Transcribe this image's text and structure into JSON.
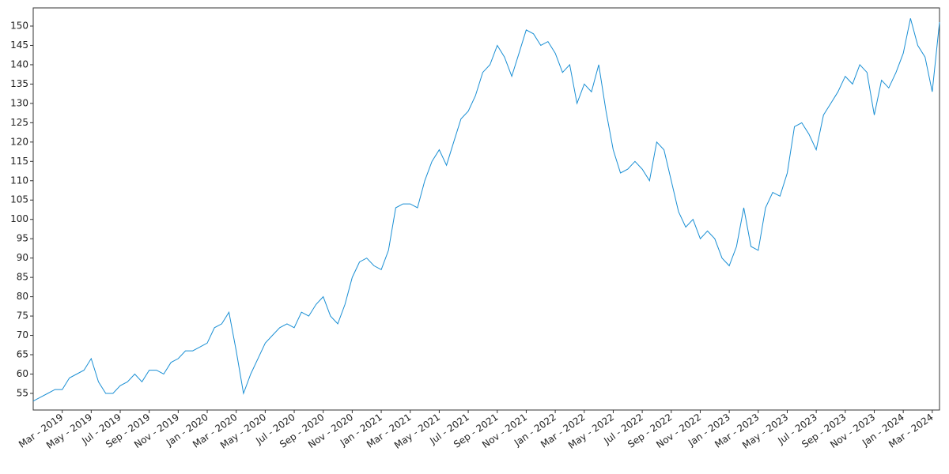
{
  "chart_data": {
    "type": "line",
    "categories": [
      null,
      null,
      null,
      null,
      "Mar - 2019",
      null,
      null,
      null,
      "May - 2019",
      null,
      null,
      null,
      "Jul - 2019",
      null,
      null,
      null,
      "Sep - 2019",
      null,
      null,
      null,
      "Nov - 2019",
      null,
      null,
      null,
      "Jan - 2020",
      null,
      null,
      null,
      "Mar - 2020",
      null,
      null,
      null,
      "May - 2020",
      null,
      null,
      null,
      "Jul - 2020",
      null,
      null,
      null,
      "Sep - 2020",
      null,
      null,
      null,
      "Nov - 2020",
      null,
      null,
      null,
      "Jan - 2021",
      null,
      null,
      null,
      "Mar - 2021",
      null,
      null,
      null,
      "May - 2021",
      null,
      null,
      null,
      "Jul - 2021",
      null,
      null,
      null,
      "Sep - 2021",
      null,
      null,
      null,
      "Nov - 2021",
      null,
      null,
      null,
      "Jan - 2022",
      null,
      null,
      null,
      "Mar - 2022",
      null,
      null,
      null,
      "May - 2022",
      null,
      null,
      null,
      "Jul - 2022",
      null,
      null,
      null,
      "Sep - 2022",
      null,
      null,
      null,
      "Nov - 2022",
      null,
      null,
      null,
      "Jan - 2023",
      null,
      null,
      null,
      "Mar - 2023",
      null,
      null,
      null,
      "May - 2023",
      null,
      null,
      null,
      "Jul - 2023",
      null,
      null,
      null,
      "Sep - 2023",
      null,
      null,
      null,
      "Nov - 2023",
      null,
      null,
      null,
      "Jan - 2024",
      null,
      null,
      null,
      "Mar - 2024",
      null
    ],
    "series": [
      {
        "color": "#1a8fd4",
        "values": [
          53,
          54,
          55,
          56,
          56,
          59,
          60,
          61,
          64,
          58,
          55,
          55,
          57,
          58,
          60,
          58,
          61,
          61,
          60,
          63,
          64,
          66,
          66,
          67,
          68,
          72,
          73,
          76,
          66,
          55,
          60,
          64,
          68,
          70,
          72,
          73,
          72,
          76,
          75,
          78,
          80,
          75,
          73,
          78,
          85,
          89,
          90,
          88,
          87,
          92,
          103,
          104,
          104,
          103,
          110,
          115,
          118,
          114,
          120,
          126,
          128,
          132,
          138,
          140,
          145,
          142,
          137,
          143,
          149,
          148,
          145,
          146,
          143,
          138,
          140,
          130,
          135,
          133,
          140,
          128,
          118,
          112,
          113,
          115,
          113,
          110,
          120,
          118,
          110,
          102,
          98,
          100,
          95,
          97,
          95,
          90,
          88,
          93,
          103,
          93,
          92,
          103,
          107,
          106,
          112,
          124,
          125,
          122,
          118,
          127,
          130,
          133,
          137,
          135,
          140,
          138,
          127,
          136,
          134,
          138,
          143,
          152,
          145,
          142,
          133,
          151
        ]
      }
    ],
    "ylim": [
      50.7,
      154.7
    ],
    "yticks": [
      55,
      60,
      65,
      70,
      75,
      80,
      85,
      90,
      95,
      100,
      105,
      110,
      115,
      120,
      125,
      130,
      135,
      140,
      145,
      150
    ]
  }
}
